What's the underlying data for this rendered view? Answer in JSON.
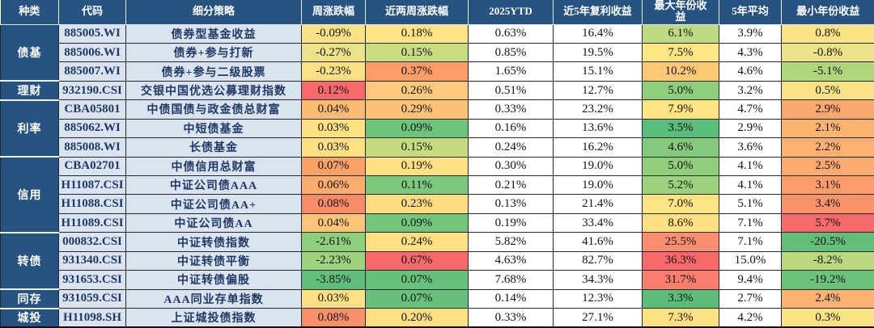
{
  "palette": {
    "header_bg": "#275380",
    "category_bg": "#275380",
    "label_cell_bg": "#DAE3F0",
    "label_text": "#1F3864",
    "header_text": "#FFFFFF",
    "grid_line": "#23272E",
    "scale_red": "#F8696B",
    "scale_yellow": "#FFE083",
    "scale_green": "#63BE7B"
  },
  "table": {
    "headers": [
      "种类",
      "代码",
      "细分策略",
      "周涨跌幅",
      "近两周涨跌幅",
      "2025YTD",
      "近5年复利收益",
      "最大年份收益",
      "5年平均",
      "最小年份收益"
    ],
    "groups": [
      {
        "category": "债基",
        "rows": [
          {
            "code": "885005.WI",
            "strategy": "债券型基金收益",
            "cells": [
              {
                "v": "-0.09%",
                "bg": "#F9E286"
              },
              {
                "v": "0.18%",
                "bg": "#FFE385"
              },
              {
                "v": "0.63%",
                "bg": "#FFFFFF"
              },
              {
                "v": "16.4%",
                "bg": "#FFFFFF"
              },
              {
                "v": "6.1%",
                "bg": "#BFD980"
              },
              {
                "v": "3.9%",
                "bg": "#FFFFFF"
              },
              {
                "v": "0.8%",
                "bg": "#FBE285"
              }
            ]
          },
          {
            "code": "885006.WI",
            "strategy": "债券+参与打新",
            "cells": [
              {
                "v": "-0.27%",
                "bg": "#EBE28A"
              },
              {
                "v": "0.15%",
                "bg": "#C8DC81"
              },
              {
                "v": "0.85%",
                "bg": "#FFFFFF"
              },
              {
                "v": "19.5%",
                "bg": "#FFFFFF"
              },
              {
                "v": "7.5%",
                "bg": "#FFE584"
              },
              {
                "v": "4.3%",
                "bg": "#FFFFFF"
              },
              {
                "v": "-0.8%",
                "bg": "#EDE289"
              }
            ]
          },
          {
            "code": "885007.WI",
            "strategy": "债券+参与二级股票",
            "cells": [
              {
                "v": "-0.23%",
                "bg": "#FDE084"
              },
              {
                "v": "0.37%",
                "bg": "#FA9D69"
              },
              {
                "v": "1.65%",
                "bg": "#FFFFFF"
              },
              {
                "v": "15.1%",
                "bg": "#FFFFFF"
              },
              {
                "v": "10.2%",
                "bg": "#FCC878"
              },
              {
                "v": "4.6%",
                "bg": "#FFFFFF"
              },
              {
                "v": "-5.1%",
                "bg": "#AFD67E"
              }
            ]
          }
        ]
      },
      {
        "category": "理财",
        "rows": [
          {
            "code": "932190.CSI",
            "strategy": "交银中国优选公募理财指数",
            "cells": [
              {
                "v": "0.12%",
                "bg": "#F8696B"
              },
              {
                "v": "0.26%",
                "bg": "#FDC97B"
              },
              {
                "v": "0.51%",
                "bg": "#FFFFFF"
              },
              {
                "v": "12.7%",
                "bg": "#FFFFFF"
              },
              {
                "v": "5.0%",
                "bg": "#8FCE7C"
              },
              {
                "v": "3.2%",
                "bg": "#FFFFFF"
              },
              {
                "v": "0.5%",
                "bg": "#F9E285"
              }
            ]
          }
        ]
      },
      {
        "category": "利率",
        "rows": [
          {
            "code": "CBA05801",
            "strategy": "中债国债与政金债总财富",
            "cells": [
              {
                "v": "0.04%",
                "bg": "#FBBA71"
              },
              {
                "v": "0.29%",
                "bg": "#FCC278"
              },
              {
                "v": "0.33%",
                "bg": "#FFFFFF"
              },
              {
                "v": "23.2%",
                "bg": "#FFFFFF"
              },
              {
                "v": "7.9%",
                "bg": "#FFE483"
              },
              {
                "v": "4.7%",
                "bg": "#FFFFFF"
              },
              {
                "v": "2.9%",
                "bg": "#FBA770"
              }
            ]
          },
          {
            "code": "885062.WI",
            "strategy": "中短债基金",
            "cells": [
              {
                "v": "0.03%",
                "bg": "#FFE184"
              },
              {
                "v": "0.09%",
                "bg": "#6FC47C"
              },
              {
                "v": "0.16%",
                "bg": "#FFFFFF"
              },
              {
                "v": "13.6%",
                "bg": "#FFFFFF"
              },
              {
                "v": "3.5%",
                "bg": "#5ABD7B"
              },
              {
                "v": "2.9%",
                "bg": "#FFFFFF"
              },
              {
                "v": "2.1%",
                "bg": "#FCB473"
              }
            ]
          },
          {
            "code": "885008.WI",
            "strategy": "长债基金",
            "cells": [
              {
                "v": "0.03%",
                "bg": "#FFE184"
              },
              {
                "v": "0.15%",
                "bg": "#C6DB80"
              },
              {
                "v": "0.24%",
                "bg": "#FFFFFF"
              },
              {
                "v": "16.2%",
                "bg": "#FFFFFF"
              },
              {
                "v": "4.6%",
                "bg": "#85CA7C"
              },
              {
                "v": "3.6%",
                "bg": "#FFFFFF"
              },
              {
                "v": "2.2%",
                "bg": "#FCB172"
              }
            ]
          }
        ]
      },
      {
        "category": "信用",
        "rows": [
          {
            "code": "CBA02701",
            "strategy": "中债信用总财富",
            "cells": [
              {
                "v": "0.07%",
                "bg": "#F9A167"
              },
              {
                "v": "0.19%",
                "bg": "#FFE083"
              },
              {
                "v": "0.30%",
                "bg": "#FFFFFF"
              },
              {
                "v": "19.0%",
                "bg": "#FFFFFF"
              },
              {
                "v": "5.0%",
                "bg": "#90CE7C"
              },
              {
                "v": "4.1%",
                "bg": "#FFFFFF"
              },
              {
                "v": "2.5%",
                "bg": "#FBAB71"
              }
            ]
          },
          {
            "code": "H11087.CSI",
            "strategy": "中证公司债AAA",
            "cells": [
              {
                "v": "0.06%",
                "bg": "#FAAD6E"
              },
              {
                "v": "0.11%",
                "bg": "#7CC87D"
              },
              {
                "v": "0.21%",
                "bg": "#FFFFFF"
              },
              {
                "v": "19.0%",
                "bg": "#FFFFFF"
              },
              {
                "v": "5.2%",
                "bg": "#9CD17D"
              },
              {
                "v": "4.1%",
                "bg": "#FFFFFF"
              },
              {
                "v": "3.1%",
                "bg": "#FA9C6B"
              }
            ]
          },
          {
            "code": "H11088.CSI",
            "strategy": "中证公司债AA+",
            "cells": [
              {
                "v": "0.08%",
                "bg": "#F98B69"
              },
              {
                "v": "0.23%",
                "bg": "#FEDD81"
              },
              {
                "v": "0.13%",
                "bg": "#FFFFFF"
              },
              {
                "v": "21.4%",
                "bg": "#FFFFFF"
              },
              {
                "v": "7.0%",
                "bg": "#FCE383"
              },
              {
                "v": "5.1%",
                "bg": "#FFFFFF"
              },
              {
                "v": "3.4%",
                "bg": "#FA946A"
              }
            ]
          },
          {
            "code": "H11089.CSI",
            "strategy": "中证公司债AA",
            "cells": [
              {
                "v": "0.04%",
                "bg": "#FCC476"
              },
              {
                "v": "0.09%",
                "bg": "#74C67C"
              },
              {
                "v": "0.19%",
                "bg": "#FFFFFF"
              },
              {
                "v": "33.4%",
                "bg": "#FFFFFF"
              },
              {
                "v": "8.6%",
                "bg": "#FEE083"
              },
              {
                "v": "7.1%",
                "bg": "#FFFFFF"
              },
              {
                "v": "5.7%",
                "bg": "#F8696B"
              }
            ]
          }
        ]
      },
      {
        "category": "转债",
        "rows": [
          {
            "code": "000832.CSI",
            "strategy": "中证转债指数",
            "cells": [
              {
                "v": "-2.61%",
                "bg": "#8FCE7C"
              },
              {
                "v": "0.24%",
                "bg": "#FEDF82"
              },
              {
                "v": "5.82%",
                "bg": "#FFFFFF"
              },
              {
                "v": "41.6%",
                "bg": "#FFFFFF"
              },
              {
                "v": "25.5%",
                "bg": "#F98E70"
              },
              {
                "v": "7.1%",
                "bg": "#FFFFFF"
              },
              {
                "v": "-20.5%",
                "bg": "#63BE7B"
              }
            ]
          },
          {
            "code": "931340.CSI",
            "strategy": "中证转债平衡",
            "cells": [
              {
                "v": "-2.23%",
                "bg": "#9DD27E"
              },
              {
                "v": "0.67%",
                "bg": "#F8696B"
              },
              {
                "v": "4.63%",
                "bg": "#FFFFFF"
              },
              {
                "v": "82.7%",
                "bg": "#FFFFFF"
              },
              {
                "v": "36.3%",
                "bg": "#F8696B"
              },
              {
                "v": "15.0%",
                "bg": "#FFFFFF"
              },
              {
                "v": "-8.2%",
                "bg": "#BBD87F"
              }
            ]
          },
          {
            "code": "931653.CSI",
            "strategy": "中证转债偏股",
            "cells": [
              {
                "v": "-3.85%",
                "bg": "#63BE7B"
              },
              {
                "v": "0.07%",
                "bg": "#66C17B"
              },
              {
                "v": "7.68%",
                "bg": "#FFFFFF"
              },
              {
                "v": "34.3%",
                "bg": "#FFFFFF"
              },
              {
                "v": "31.7%",
                "bg": "#F97E6D"
              },
              {
                "v": "9.4%",
                "bg": "#FFFFFF"
              },
              {
                "v": "-19.2%",
                "bg": "#6CC27B"
              }
            ]
          }
        ]
      },
      {
        "category": "同存",
        "rows": [
          {
            "code": "931059.CSI",
            "strategy": "AAA同业存单指数",
            "cells": [
              {
                "v": "0.03%",
                "bg": "#FFE083"
              },
              {
                "v": "0.07%",
                "bg": "#68C17B"
              },
              {
                "v": "0.14%",
                "bg": "#FFFFFF"
              },
              {
                "v": "12.3%",
                "bg": "#FFFFFF"
              },
              {
                "v": "3.3%",
                "bg": "#5CBD7B"
              },
              {
                "v": "2.7%",
                "bg": "#FFFFFF"
              },
              {
                "v": "2.4%",
                "bg": "#FCB273"
              }
            ]
          }
        ]
      },
      {
        "category": "城投",
        "rows": [
          {
            "code": "H11098.SH",
            "strategy": "上证城投债指数",
            "cells": [
              {
                "v": "0.08%",
                "bg": "#F9906C"
              },
              {
                "v": "0.20%",
                "bg": "#FFDF82"
              },
              {
                "v": "0.33%",
                "bg": "#FFFFFF"
              },
              {
                "v": "27.1%",
                "bg": "#FFFFFF"
              },
              {
                "v": "7.3%",
                "bg": "#FEE183"
              },
              {
                "v": "4.2%",
                "bg": "#FFFFFF"
              },
              {
                "v": "0.3%",
                "bg": "#FBE285"
              }
            ]
          }
        ]
      }
    ]
  },
  "chart_data": {
    "type": "table",
    "columns": [
      "种类",
      "代码",
      "细分策略",
      "周涨跌幅",
      "近两周涨跌幅",
      "2025YTD",
      "近5年复利收益",
      "最大年份收益",
      "5年平均",
      "最小年份收益"
    ],
    "rows": [
      [
        "债基",
        "885005.WI",
        "债券型基金收益",
        "-0.09%",
        "0.18%",
        "0.63%",
        "16.4%",
        "6.1%",
        "3.9%",
        "0.8%"
      ],
      [
        "债基",
        "885006.WI",
        "债券+参与打新",
        "-0.27%",
        "0.15%",
        "0.85%",
        "19.5%",
        "7.5%",
        "4.3%",
        "-0.8%"
      ],
      [
        "债基",
        "885007.WI",
        "债券+参与二级股票",
        "-0.23%",
        "0.37%",
        "1.65%",
        "15.1%",
        "10.2%",
        "4.6%",
        "-5.1%"
      ],
      [
        "理财",
        "932190.CSI",
        "交银中国优选公募理财指数",
        "0.12%",
        "0.26%",
        "0.51%",
        "12.7%",
        "5.0%",
        "3.2%",
        "0.5%"
      ],
      [
        "利率",
        "CBA05801",
        "中债国债与政金债总财富",
        "0.04%",
        "0.29%",
        "0.33%",
        "23.2%",
        "7.9%",
        "4.7%",
        "2.9%"
      ],
      [
        "利率",
        "885062.WI",
        "中短债基金",
        "0.03%",
        "0.09%",
        "0.16%",
        "13.6%",
        "3.5%",
        "2.9%",
        "2.1%"
      ],
      [
        "利率",
        "885008.WI",
        "长债基金",
        "0.03%",
        "0.15%",
        "0.24%",
        "16.2%",
        "4.6%",
        "3.6%",
        "2.2%"
      ],
      [
        "信用",
        "CBA02701",
        "中债信用总财富",
        "0.07%",
        "0.19%",
        "0.30%",
        "19.0%",
        "5.0%",
        "4.1%",
        "2.5%"
      ],
      [
        "信用",
        "H11087.CSI",
        "中证公司债AAA",
        "0.06%",
        "0.11%",
        "0.21%",
        "19.0%",
        "5.2%",
        "4.1%",
        "3.1%"
      ],
      [
        "信用",
        "H11088.CSI",
        "中证公司债AA+",
        "0.08%",
        "0.23%",
        "0.13%",
        "21.4%",
        "7.0%",
        "5.1%",
        "3.4%"
      ],
      [
        "信用",
        "H11089.CSI",
        "中证公司债AA",
        "0.04%",
        "0.09%",
        "0.19%",
        "33.4%",
        "8.6%",
        "7.1%",
        "5.7%"
      ],
      [
        "转债",
        "000832.CSI",
        "中证转债指数",
        "-2.61%",
        "0.24%",
        "5.82%",
        "41.6%",
        "25.5%",
        "7.1%",
        "-20.5%"
      ],
      [
        "转债",
        "931340.CSI",
        "中证转债平衡",
        "-2.23%",
        "0.67%",
        "4.63%",
        "82.7%",
        "36.3%",
        "15.0%",
        "-8.2%"
      ],
      [
        "转债",
        "931653.CSI",
        "中证转债偏股",
        "-3.85%",
        "0.07%",
        "7.68%",
        "34.3%",
        "31.7%",
        "9.4%",
        "-19.2%"
      ],
      [
        "同存",
        "931059.CSI",
        "AAA同业存单指数",
        "0.03%",
        "0.07%",
        "0.14%",
        "12.3%",
        "3.3%",
        "2.7%",
        "2.4%"
      ],
      [
        "城投",
        "H11098.SH",
        "上证城投债指数",
        "0.08%",
        "0.20%",
        "0.33%",
        "27.1%",
        "7.3%",
        "4.2%",
        "0.3%"
      ]
    ]
  }
}
